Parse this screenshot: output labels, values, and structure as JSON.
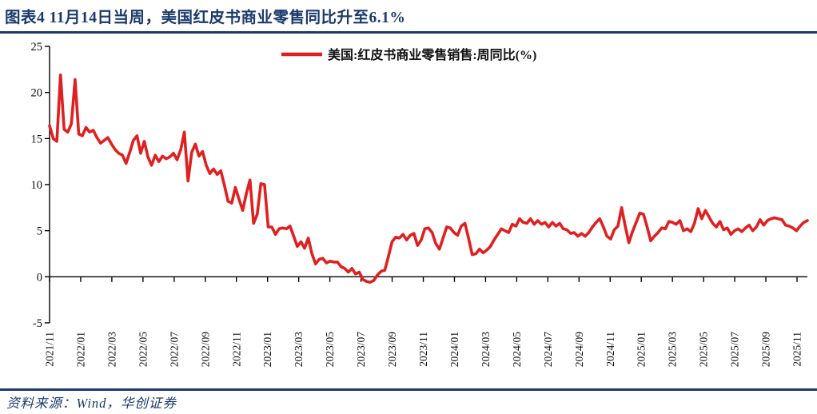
{
  "title": "图表4 11月14日当周，美国红皮书商业零售同比升至6.1%",
  "source": "资料来源：Wind，华创证券",
  "colors": {
    "accent_red": "#e02020",
    "navy": "#1b3a6b",
    "axis": "#000000"
  },
  "chart_data": {
    "type": "line",
    "title": "图表4 11月14日当周，美国红皮书商业零售同比升至6.1%",
    "legend": [
      {
        "label": "美国:红皮书商业零售销售:周同比(%)",
        "color": "#e02020"
      }
    ],
    "legend_position": "top-center",
    "grid": "zero-line-only",
    "frequency": "weekly",
    "x_start": "2021/11",
    "x_end": "2025/11",
    "last_value": 6.1,
    "x_tick_labels": [
      "2021/11",
      "2022/01",
      "2022/03",
      "2022/05",
      "2022/07",
      "2022/09",
      "2022/11",
      "2023/01",
      "2023/03",
      "2023/05",
      "2023/07",
      "2023/09",
      "2023/11",
      "2024/01",
      "2024/03",
      "2024/05",
      "2024/07",
      "2024/09",
      "2024/11",
      "2025/01",
      "2025/03",
      "2025/05",
      "2025/07",
      "2025/09",
      "2025/11"
    ],
    "y_ticks": [
      25,
      20,
      15,
      10,
      5,
      0,
      -5
    ],
    "ylim": [
      -5,
      25
    ],
    "ylabel": "",
    "xlabel": "",
    "values": [
      16.4,
      15.0,
      14.7,
      21.9,
      16.0,
      15.7,
      16.6,
      21.4,
      15.5,
      15.3,
      16.2,
      15.7,
      15.9,
      15.1,
      14.5,
      14.8,
      15.1,
      14.4,
      13.8,
      13.4,
      13.2,
      12.3,
      13.5,
      14.8,
      15.3,
      13.4,
      14.7,
      13.0,
      12.1,
      13.2,
      12.5,
      13.1,
      12.8,
      13.0,
      13.4,
      12.7,
      13.8,
      15.7,
      10.4,
      13.5,
      14.4,
      13.1,
      13.6,
      12.1,
      11.2,
      11.7,
      11.1,
      11.5,
      9.9,
      8.2,
      8.0,
      9.7,
      8.4,
      7.2,
      9.0,
      10.5,
      5.8,
      6.8,
      10.1,
      10.0,
      5.4,
      5.4,
      4.6,
      5.2,
      5.3,
      5.2,
      5.5,
      4.4,
      3.3,
      3.8,
      3.1,
      4.2,
      2.5,
      1.4,
      1.9,
      2.0,
      1.5,
      1.7,
      1.6,
      1.6,
      1.1,
      0.9,
      0.5,
      0.9,
      0.3,
      0.5,
      -0.3,
      -0.5,
      -0.6,
      -0.4,
      0.2,
      0.6,
      0.7,
      2.2,
      3.8,
      4.3,
      4.2,
      4.6,
      4.0,
      4.5,
      4.7,
      3.4,
      4.0,
      5.2,
      5.3,
      4.8,
      3.6,
      3.0,
      4.2,
      5.4,
      5.3,
      4.8,
      4.5,
      5.5,
      5.8,
      4.2,
      2.4,
      2.5,
      3.0,
      2.6,
      2.9,
      3.3,
      4.0,
      4.6,
      5.2,
      5.0,
      4.8,
      5.7,
      5.5,
      6.3,
      5.9,
      5.8,
      6.3,
      5.7,
      6.1,
      5.7,
      5.9,
      5.4,
      5.9,
      5.5,
      5.8,
      5.2,
      5.1,
      4.7,
      4.8,
      4.4,
      4.7,
      4.4,
      4.8,
      5.4,
      5.9,
      6.3,
      5.4,
      4.4,
      4.1,
      5.1,
      5.5,
      7.5,
      5.5,
      3.7,
      4.9,
      5.9,
      6.9,
      6.8,
      5.4,
      3.9,
      4.4,
      4.8,
      5.3,
      5.2,
      6.0,
      5.9,
      5.7,
      6.1,
      5.0,
      5.2,
      4.9,
      5.8,
      7.4,
      6.3,
      7.2,
      6.5,
      5.8,
      5.4,
      6.0,
      5.1,
      5.3,
      4.6,
      5.0,
      5.2,
      4.9,
      5.3,
      5.6,
      5.0,
      5.4,
      6.2,
      5.6,
      6.1,
      6.3,
      6.4,
      6.3,
      6.2,
      5.6,
      5.5,
      5.3,
      5.0,
      5.5,
      5.9,
      6.1
    ]
  }
}
